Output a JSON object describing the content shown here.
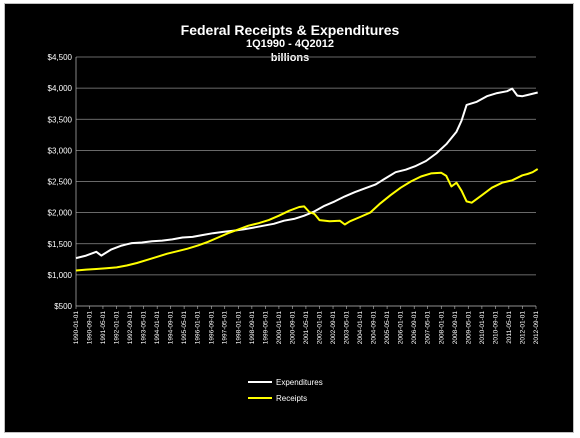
{
  "chart_data": {
    "type": "line",
    "title": "Federal Receipts & Expenditures",
    "subtitle_1": "1Q1990 - 4Q2012",
    "subtitle_2": "billions",
    "ylim": [
      500,
      4500
    ],
    "y_ticks": [
      "$500",
      "$1,000",
      "$1,500",
      "$2,000",
      "$2,500",
      "$3,000",
      "$3,500",
      "$4,000",
      "$4,500"
    ],
    "grid": "horizontal",
    "legend_position": "bottom",
    "x_tick_labels": [
      "1990-01-01",
      "1990-09-01",
      "1991-05-01",
      "1992-01-01",
      "1992-09-01",
      "1993-05-01",
      "1994-01-01",
      "1994-09-01",
      "1995-05-01",
      "1996-01-01",
      "1996-09-01",
      "1997-05-01",
      "1998-01-01",
      "1998-09-01",
      "1999-05-01",
      "2000-01-01",
      "2000-09-01",
      "2001-05-01",
      "2002-01-01",
      "2002-09-01",
      "2003-05-01",
      "2004-01-01",
      "2004-09-01",
      "2005-05-01",
      "2006-01-01",
      "2006-09-01",
      "2007-05-01",
      "2008-01-01",
      "2008-09-01",
      "2009-05-01",
      "2010-01-01",
      "2010-09-01",
      "2011-05-01",
      "2012-01-01",
      "2012-09-01"
    ],
    "series": [
      {
        "name": "Expenditures",
        "color": "#ffffff",
        "points": [
          [
            "1990-01-01",
            1270
          ],
          [
            "1990-07-01",
            1310
          ],
          [
            "1991-01-01",
            1370
          ],
          [
            "1991-04-01",
            1310
          ],
          [
            "1991-10-01",
            1410
          ],
          [
            "1992-04-01",
            1470
          ],
          [
            "1992-10-01",
            1510
          ],
          [
            "1993-04-01",
            1520
          ],
          [
            "1993-10-01",
            1540
          ],
          [
            "1994-04-01",
            1550
          ],
          [
            "1994-10-01",
            1570
          ],
          [
            "1995-04-01",
            1600
          ],
          [
            "1995-10-01",
            1610
          ],
          [
            "1996-04-01",
            1640
          ],
          [
            "1996-10-01",
            1670
          ],
          [
            "1997-04-01",
            1690
          ],
          [
            "1997-10-01",
            1710
          ],
          [
            "1998-04-01",
            1730
          ],
          [
            "1998-10-01",
            1760
          ],
          [
            "1999-04-01",
            1790
          ],
          [
            "1999-10-01",
            1820
          ],
          [
            "2000-04-01",
            1870
          ],
          [
            "2000-10-01",
            1900
          ],
          [
            "2001-04-01",
            1950
          ],
          [
            "2001-10-01",
            2020
          ],
          [
            "2002-04-01",
            2110
          ],
          [
            "2002-10-01",
            2180
          ],
          [
            "2003-04-01",
            2260
          ],
          [
            "2003-10-01",
            2330
          ],
          [
            "2004-04-01",
            2390
          ],
          [
            "2004-10-01",
            2450
          ],
          [
            "2005-04-01",
            2550
          ],
          [
            "2005-10-01",
            2650
          ],
          [
            "2006-04-01",
            2690
          ],
          [
            "2006-10-01",
            2750
          ],
          [
            "2007-04-01",
            2830
          ],
          [
            "2007-10-01",
            2950
          ],
          [
            "2008-04-01",
            3100
          ],
          [
            "2008-10-01",
            3300
          ],
          [
            "2009-01-01",
            3480
          ],
          [
            "2009-04-01",
            3730
          ],
          [
            "2009-10-01",
            3780
          ],
          [
            "2010-04-01",
            3870
          ],
          [
            "2010-10-01",
            3920
          ],
          [
            "2011-04-01",
            3950
          ],
          [
            "2011-07-01",
            3990
          ],
          [
            "2011-10-01",
            3880
          ],
          [
            "2012-01-01",
            3870
          ],
          [
            "2012-04-01",
            3890
          ],
          [
            "2012-10-01",
            3930
          ]
        ]
      },
      {
        "name": "Receipts",
        "color": "#ffff00",
        "points": [
          [
            "1990-01-01",
            1070
          ],
          [
            "1990-07-01",
            1085
          ],
          [
            "1991-01-01",
            1095
          ],
          [
            "1991-07-01",
            1105
          ],
          [
            "1992-01-01",
            1120
          ],
          [
            "1992-07-01",
            1150
          ],
          [
            "1993-01-01",
            1190
          ],
          [
            "1993-07-01",
            1240
          ],
          [
            "1994-01-01",
            1290
          ],
          [
            "1994-07-01",
            1340
          ],
          [
            "1995-01-01",
            1380
          ],
          [
            "1995-07-01",
            1420
          ],
          [
            "1996-01-01",
            1470
          ],
          [
            "1996-07-01",
            1530
          ],
          [
            "1997-01-01",
            1600
          ],
          [
            "1997-07-01",
            1670
          ],
          [
            "1998-01-01",
            1730
          ],
          [
            "1998-07-01",
            1790
          ],
          [
            "1999-01-01",
            1830
          ],
          [
            "1999-07-01",
            1880
          ],
          [
            "2000-01-01",
            1950
          ],
          [
            "2000-07-01",
            2030
          ],
          [
            "2001-01-01",
            2090
          ],
          [
            "2001-04-01",
            2100
          ],
          [
            "2001-07-01",
            2010
          ],
          [
            "2001-10-01",
            1980
          ],
          [
            "2002-01-01",
            1880
          ],
          [
            "2002-07-01",
            1860
          ],
          [
            "2003-01-01",
            1870
          ],
          [
            "2003-04-01",
            1810
          ],
          [
            "2003-07-01",
            1860
          ],
          [
            "2004-01-01",
            1930
          ],
          [
            "2004-07-01",
            2000
          ],
          [
            "2005-01-01",
            2150
          ],
          [
            "2005-07-01",
            2280
          ],
          [
            "2006-01-01",
            2400
          ],
          [
            "2006-07-01",
            2500
          ],
          [
            "2007-01-01",
            2580
          ],
          [
            "2007-07-01",
            2630
          ],
          [
            "2008-01-01",
            2640
          ],
          [
            "2008-04-01",
            2590
          ],
          [
            "2008-07-01",
            2420
          ],
          [
            "2008-10-01",
            2480
          ],
          [
            "2009-01-01",
            2350
          ],
          [
            "2009-04-01",
            2180
          ],
          [
            "2009-07-01",
            2160
          ],
          [
            "2010-01-01",
            2280
          ],
          [
            "2010-07-01",
            2400
          ],
          [
            "2011-01-01",
            2480
          ],
          [
            "2011-07-01",
            2520
          ],
          [
            "2012-01-01",
            2600
          ],
          [
            "2012-04-01",
            2620
          ],
          [
            "2012-07-01",
            2650
          ],
          [
            "2012-10-01",
            2700
          ]
        ]
      }
    ]
  }
}
